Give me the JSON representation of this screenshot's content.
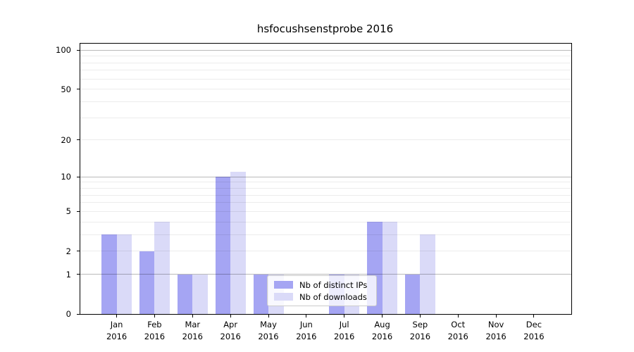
{
  "chart_data": {
    "type": "bar",
    "title": "hsfocushsenstprobe 2016",
    "x_year": "2016",
    "categories": [
      "Jan",
      "Feb",
      "Mar",
      "Apr",
      "May",
      "Jun",
      "Jul",
      "Aug",
      "Sep",
      "Oct",
      "Nov",
      "Dec"
    ],
    "series": [
      {
        "name": "Nb of distinct IPs",
        "color": "#a5a5f3",
        "values": [
          3,
          2,
          1,
          10,
          1,
          0,
          1,
          4,
          1,
          0,
          0,
          0
        ]
      },
      {
        "name": "Nb of downloads",
        "color": "#dadaf8",
        "values": [
          3,
          4,
          1,
          11,
          1,
          0,
          1,
          4,
          3,
          0,
          0,
          0
        ]
      }
    ],
    "yscale": "log10(value+1)",
    "ylim": [
      0,
      112
    ],
    "yticks": [
      0,
      1,
      2,
      5,
      10,
      20,
      50,
      100
    ],
    "grid_minor": [
      2,
      3,
      4,
      5,
      6,
      7,
      8,
      9,
      20,
      30,
      40,
      50,
      60,
      70,
      80,
      90
    ],
    "grid_major": [
      1,
      10,
      100
    ],
    "legend_loc": "lower center",
    "grid": "on"
  }
}
